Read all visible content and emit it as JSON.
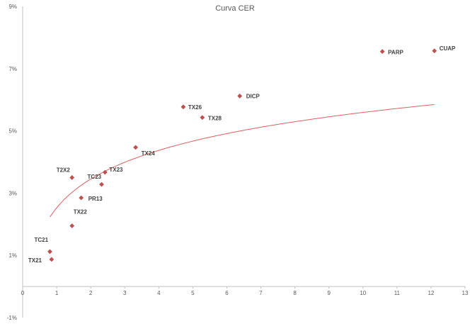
{
  "chart_data": {
    "type": "scatter",
    "title": "Curva CER",
    "xlabel": "",
    "ylabel": "",
    "xlim": [
      0,
      13
    ],
    "ylim": [
      -1,
      9
    ],
    "x_ticks": [
      "0",
      "1",
      "2",
      "3",
      "4",
      "5",
      "6",
      "7",
      "8",
      "9",
      "10",
      "11",
      "12",
      "13"
    ],
    "y_ticks": [
      {
        "value": 9,
        "label": "9%"
      },
      {
        "value": 7,
        "label": "7%"
      },
      {
        "value": 5,
        "label": "5%"
      },
      {
        "value": 3,
        "label": "3%"
      },
      {
        "value": 1,
        "label": "1%"
      },
      {
        "value": -1,
        "label": "-1%"
      }
    ],
    "grid": false,
    "marker_color": "#c0504d",
    "trendline_color": "#e06060",
    "trendline": {
      "type": "logarithmic",
      "a": 1.33,
      "b": 2.53,
      "x_range": [
        0.8,
        12.1
      ]
    },
    "points": [
      {
        "label": "TX21",
        "x": 0.85,
        "y": 0.87
      },
      {
        "label": "TC21",
        "x": 0.8,
        "y": 1.12
      },
      {
        "label": "TX22",
        "x": 1.45,
        "y": 1.95
      },
      {
        "label": "T2X2",
        "x": 1.45,
        "y": 3.5
      },
      {
        "label": "PR13",
        "x": 1.72,
        "y": 2.85
      },
      {
        "label": "TC23",
        "x": 2.32,
        "y": 3.28
      },
      {
        "label": "TX23",
        "x": 2.42,
        "y": 3.67
      },
      {
        "label": "TX24",
        "x": 3.32,
        "y": 4.47
      },
      {
        "label": "TX26",
        "x": 4.72,
        "y": 5.77
      },
      {
        "label": "TX28",
        "x": 5.28,
        "y": 5.43
      },
      {
        "label": "DICP",
        "x": 6.38,
        "y": 6.12
      },
      {
        "label": "PARP",
        "x": 10.57,
        "y": 7.55
      },
      {
        "label": "CUAP",
        "x": 12.1,
        "y": 7.57
      }
    ]
  }
}
